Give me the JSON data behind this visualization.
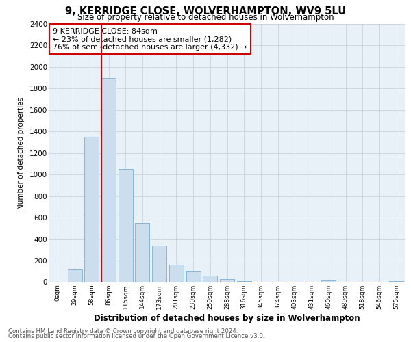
{
  "title1": "9, KERRIDGE CLOSE, WOLVERHAMPTON, WV9 5LU",
  "title2": "Size of property relative to detached houses in Wolverhampton",
  "xlabel": "Distribution of detached houses by size in Wolverhampton",
  "ylabel": "Number of detached properties",
  "categories": [
    "0sqm",
    "29sqm",
    "58sqm",
    "86sqm",
    "115sqm",
    "144sqm",
    "173sqm",
    "201sqm",
    "230sqm",
    "259sqm",
    "288sqm",
    "316sqm",
    "345sqm",
    "374sqm",
    "403sqm",
    "431sqm",
    "460sqm",
    "489sqm",
    "518sqm",
    "546sqm",
    "575sqm"
  ],
  "values": [
    0,
    120,
    1350,
    1900,
    1050,
    550,
    340,
    160,
    105,
    60,
    30,
    10,
    5,
    2,
    1,
    1,
    15,
    1,
    1,
    1,
    10
  ],
  "bar_color": "#ccdded",
  "bar_edge_color": "#7bafd4",
  "vline_color": "#cc0000",
  "annotation_title": "9 KERRIDGE CLOSE: 84sqm",
  "annotation_line1": "← 23% of detached houses are smaller (1,282)",
  "annotation_line2": "76% of semi-detached houses are larger (4,332) →",
  "annotation_box_facecolor": "#ffffff",
  "annotation_box_edgecolor": "#cc0000",
  "grid_color": "#c8d4e0",
  "bg_color": "#e8f0f8",
  "ylim": [
    0,
    2400
  ],
  "yticks": [
    0,
    200,
    400,
    600,
    800,
    1000,
    1200,
    1400,
    1600,
    1800,
    2000,
    2200,
    2400
  ],
  "footer1": "Contains HM Land Registry data © Crown copyright and database right 2024.",
  "footer2": "Contains public sector information licensed under the Open Government Licence v3.0."
}
